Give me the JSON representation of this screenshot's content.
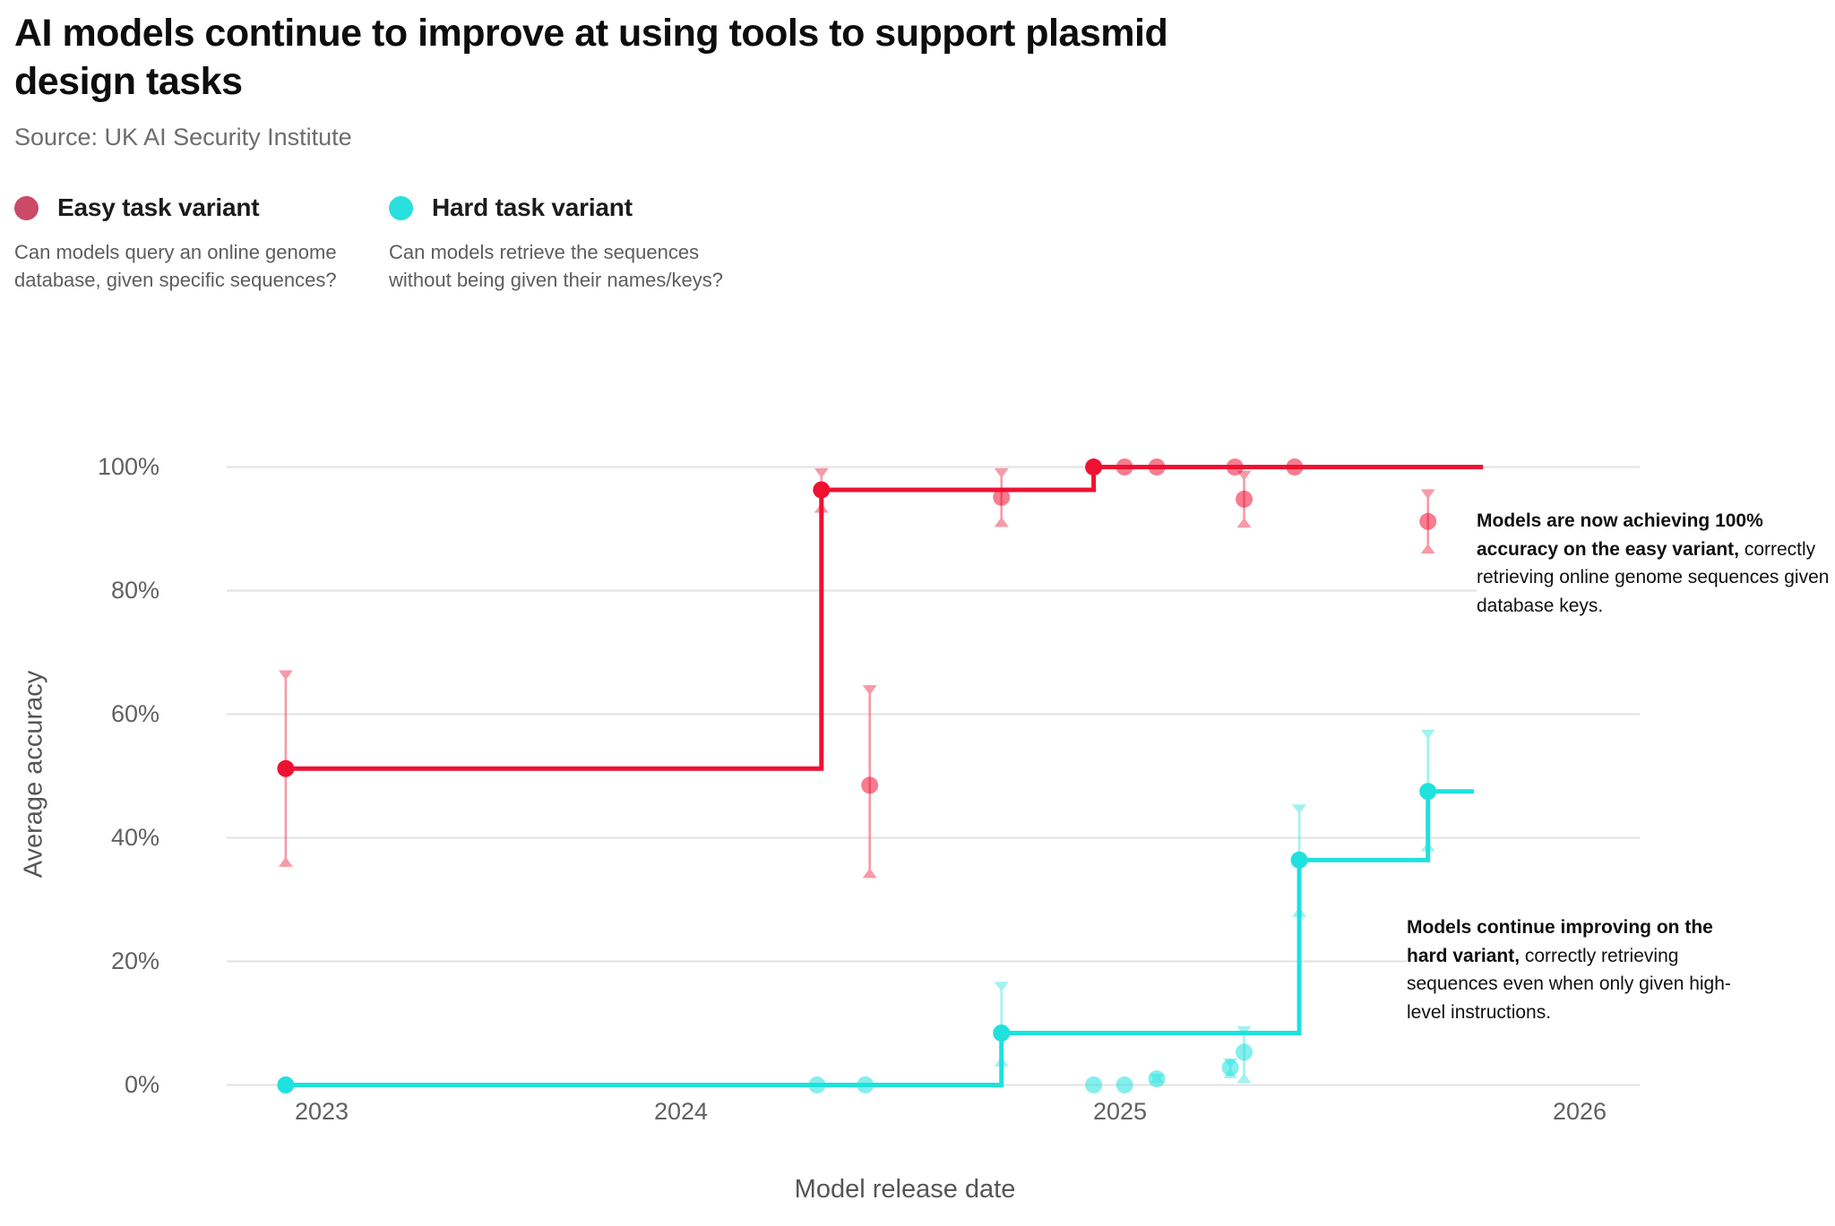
{
  "header": {
    "title": "AI models continue to improve at using tools to support plasmid design tasks",
    "title_lines": [
      "AI models continue to improve at using tools to support plasmid",
      "design tasks"
    ],
    "source": "Source: UK AI Security Institute"
  },
  "legend": {
    "easy": {
      "label": "Easy task variant",
      "color": "#ca4a68",
      "description_lines": [
        "Can models query an online genome",
        "database, given specific sequences?"
      ]
    },
    "hard": {
      "label": "Hard task variant",
      "color": "#2ae0de",
      "description_lines": [
        "Can models retrieve the sequences",
        "without being given their names/keys?"
      ]
    }
  },
  "chart_data": {
    "type": "line",
    "subtype": "step-frontier-with-error-bars",
    "title": "",
    "xlabel": "Model release date",
    "ylabel": "Average accuracy",
    "x_unit": "decimal_year",
    "y_unit": "percent",
    "ylim": [
      0,
      100
    ],
    "grid": true,
    "legend_position": "top-left",
    "x_ticks": [
      {
        "label": "2023",
        "year": 2023
      },
      {
        "label": "2024",
        "year": 2024
      },
      {
        "label": "2025",
        "year": 2025
      },
      {
        "label": "2026",
        "year": 2026
      }
    ],
    "y_ticks": [
      {
        "label": "0%",
        "value": 0
      },
      {
        "label": "20%",
        "value": 20
      },
      {
        "label": "40%",
        "value": 40
      },
      {
        "label": "60%",
        "value": 60
      },
      {
        "label": "80%",
        "value": 80
      },
      {
        "label": "100%",
        "value": 100
      }
    ],
    "series": [
      {
        "name": "Easy task variant — frontier",
        "color": "#ee1132",
        "faded": false,
        "step_line": true,
        "line_end_x": 2025.79,
        "points": [
          {
            "x": 2022.9,
            "y": 51.2,
            "lo": 35.3,
            "hi": 67.1
          },
          {
            "x": 2024.32,
            "y": 96.3,
            "lo": 92.6,
            "hi": 99.8
          },
          {
            "x": 2024.94,
            "y": 100,
            "lo": null,
            "hi": null
          }
        ]
      },
      {
        "name": "Easy task variant — other models",
        "color": "#ee1132",
        "faded": true,
        "step_line": false,
        "points": [
          {
            "x": 2024.43,
            "y": 48.5,
            "lo": 33.5,
            "hi": 64.7
          },
          {
            "x": 2024.73,
            "y": 95.1,
            "lo": 90.3,
            "hi": 99.8
          },
          {
            "x": 2025.01,
            "y": 100,
            "lo": null,
            "hi": null
          },
          {
            "x": 2025.08,
            "y": 100,
            "lo": null,
            "hi": null
          },
          {
            "x": 2025.25,
            "y": 100,
            "lo": null,
            "hi": null
          },
          {
            "x": 2025.27,
            "y": 94.8,
            "lo": 90.2,
            "hi": 99.4
          },
          {
            "x": 2025.38,
            "y": 100,
            "lo": null,
            "hi": null
          },
          {
            "x": 2025.67,
            "y": 91.2,
            "lo": 86.0,
            "hi": 96.4
          }
        ]
      },
      {
        "name": "Hard task variant — frontier",
        "color": "#1fe1de",
        "faded": false,
        "step_line": true,
        "line_end_x": 2025.77,
        "points": [
          {
            "x": 2022.9,
            "y": 0,
            "lo": null,
            "hi": null
          },
          {
            "x": 2024.73,
            "y": 8.4,
            "lo": 3.0,
            "hi": 16.7
          },
          {
            "x": 2025.39,
            "y": 36.4,
            "lo": 27.2,
            "hi": 45.4
          },
          {
            "x": 2025.67,
            "y": 47.5,
            "lo": 37.8,
            "hi": 57.5
          }
        ]
      },
      {
        "name": "Hard task variant — other models",
        "color": "#1fe1de",
        "faded": true,
        "step_line": false,
        "points": [
          {
            "x": 2024.31,
            "y": 0,
            "lo": null,
            "hi": null
          },
          {
            "x": 2024.42,
            "y": 0,
            "lo": null,
            "hi": null
          },
          {
            "x": 2024.94,
            "y": 0,
            "lo": null,
            "hi": null
          },
          {
            "x": 2025.01,
            "y": 0,
            "lo": null,
            "hi": null
          },
          {
            "x": 2025.08,
            "y": 1.0,
            "lo": 0.3,
            "hi": 1.8
          },
          {
            "x": 2025.24,
            "y": 2.8,
            "lo": 1.1,
            "hi": 4.3
          },
          {
            "x": 2025.27,
            "y": 5.3,
            "lo": 0.3,
            "hi": 9.5
          }
        ]
      }
    ],
    "annotations": [
      {
        "bold": "Models are now achieving 100% accuracy on the easy variant,",
        "rest": " correctly retrieving online genome sequences given database keys."
      },
      {
        "bold": "Models continue improving on the hard variant,",
        "rest": " correctly retrieving sequences even when only given high-level instructions."
      }
    ]
  }
}
